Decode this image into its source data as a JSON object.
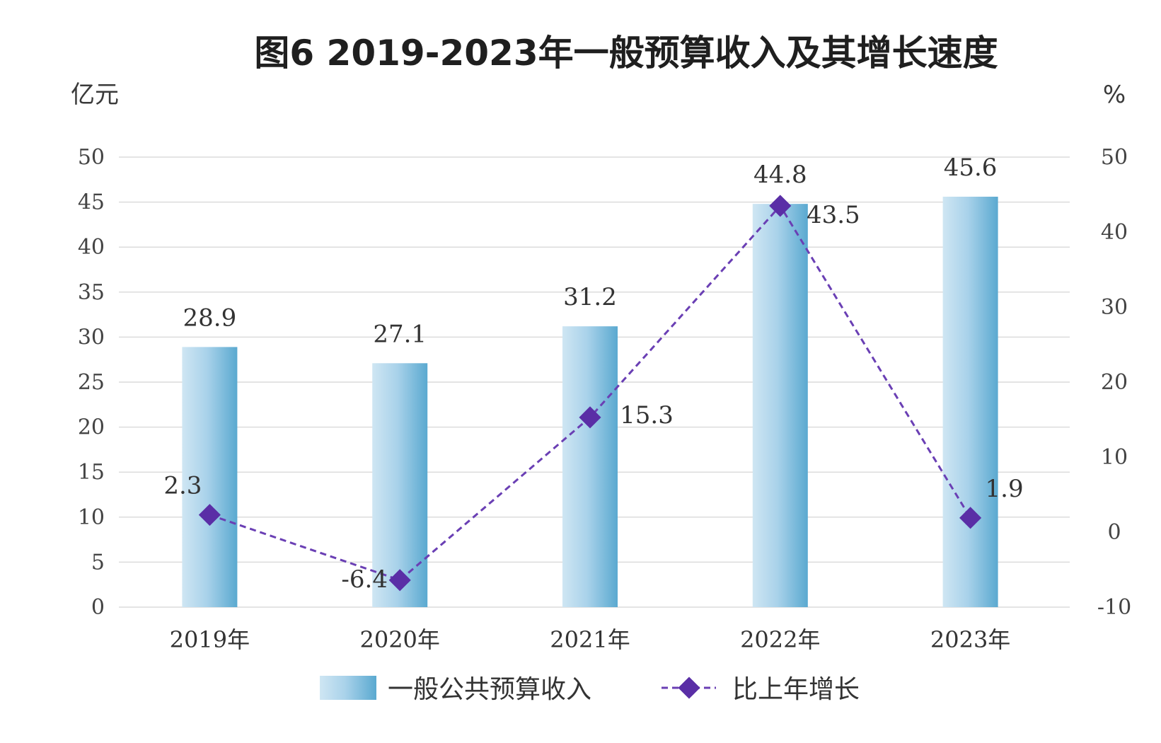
{
  "chart_data": {
    "type": "bar+line",
    "title": "图6 2019-2023年一般预算收入及其增长速度",
    "y_left_unit": "亿元",
    "y_right_unit": "%",
    "categories": [
      "2019年",
      "2020年",
      "2021年",
      "2022年",
      "2023年"
    ],
    "y_left": {
      "min": 0,
      "max": 50,
      "ticks": [
        "0",
        "5",
        "10",
        "15",
        "20",
        "25",
        "30",
        "35",
        "40",
        "45",
        "50"
      ]
    },
    "y_right": {
      "min": -10,
      "max": 50,
      "ticks": [
        "-10",
        "0",
        "10",
        "20",
        "30",
        "40",
        "50"
      ]
    },
    "series": [
      {
        "name": "一般公共预算收入",
        "type": "bar",
        "axis": "left",
        "values": [
          28.9,
          27.1,
          31.2,
          44.8,
          45.6
        ],
        "labels": [
          "28.9",
          "27.1",
          "31.2",
          "44.8",
          "45.6"
        ]
      },
      {
        "name": "比上年增长",
        "type": "line",
        "axis": "right",
        "values": [
          2.3,
          -6.4,
          15.3,
          43.5,
          1.9
        ],
        "labels": [
          "2.3",
          "-6.4",
          "15.3",
          "43.5",
          "1.9"
        ]
      }
    ],
    "grid": true,
    "legend_position": "bottom-center",
    "colors": {
      "bar_light": "#cfe6f3",
      "bar_mid": "#a9d2ea",
      "bar_dark": "#5aa9d0",
      "line": "#6a3fb4",
      "marker": "#5a2ea6"
    }
  }
}
